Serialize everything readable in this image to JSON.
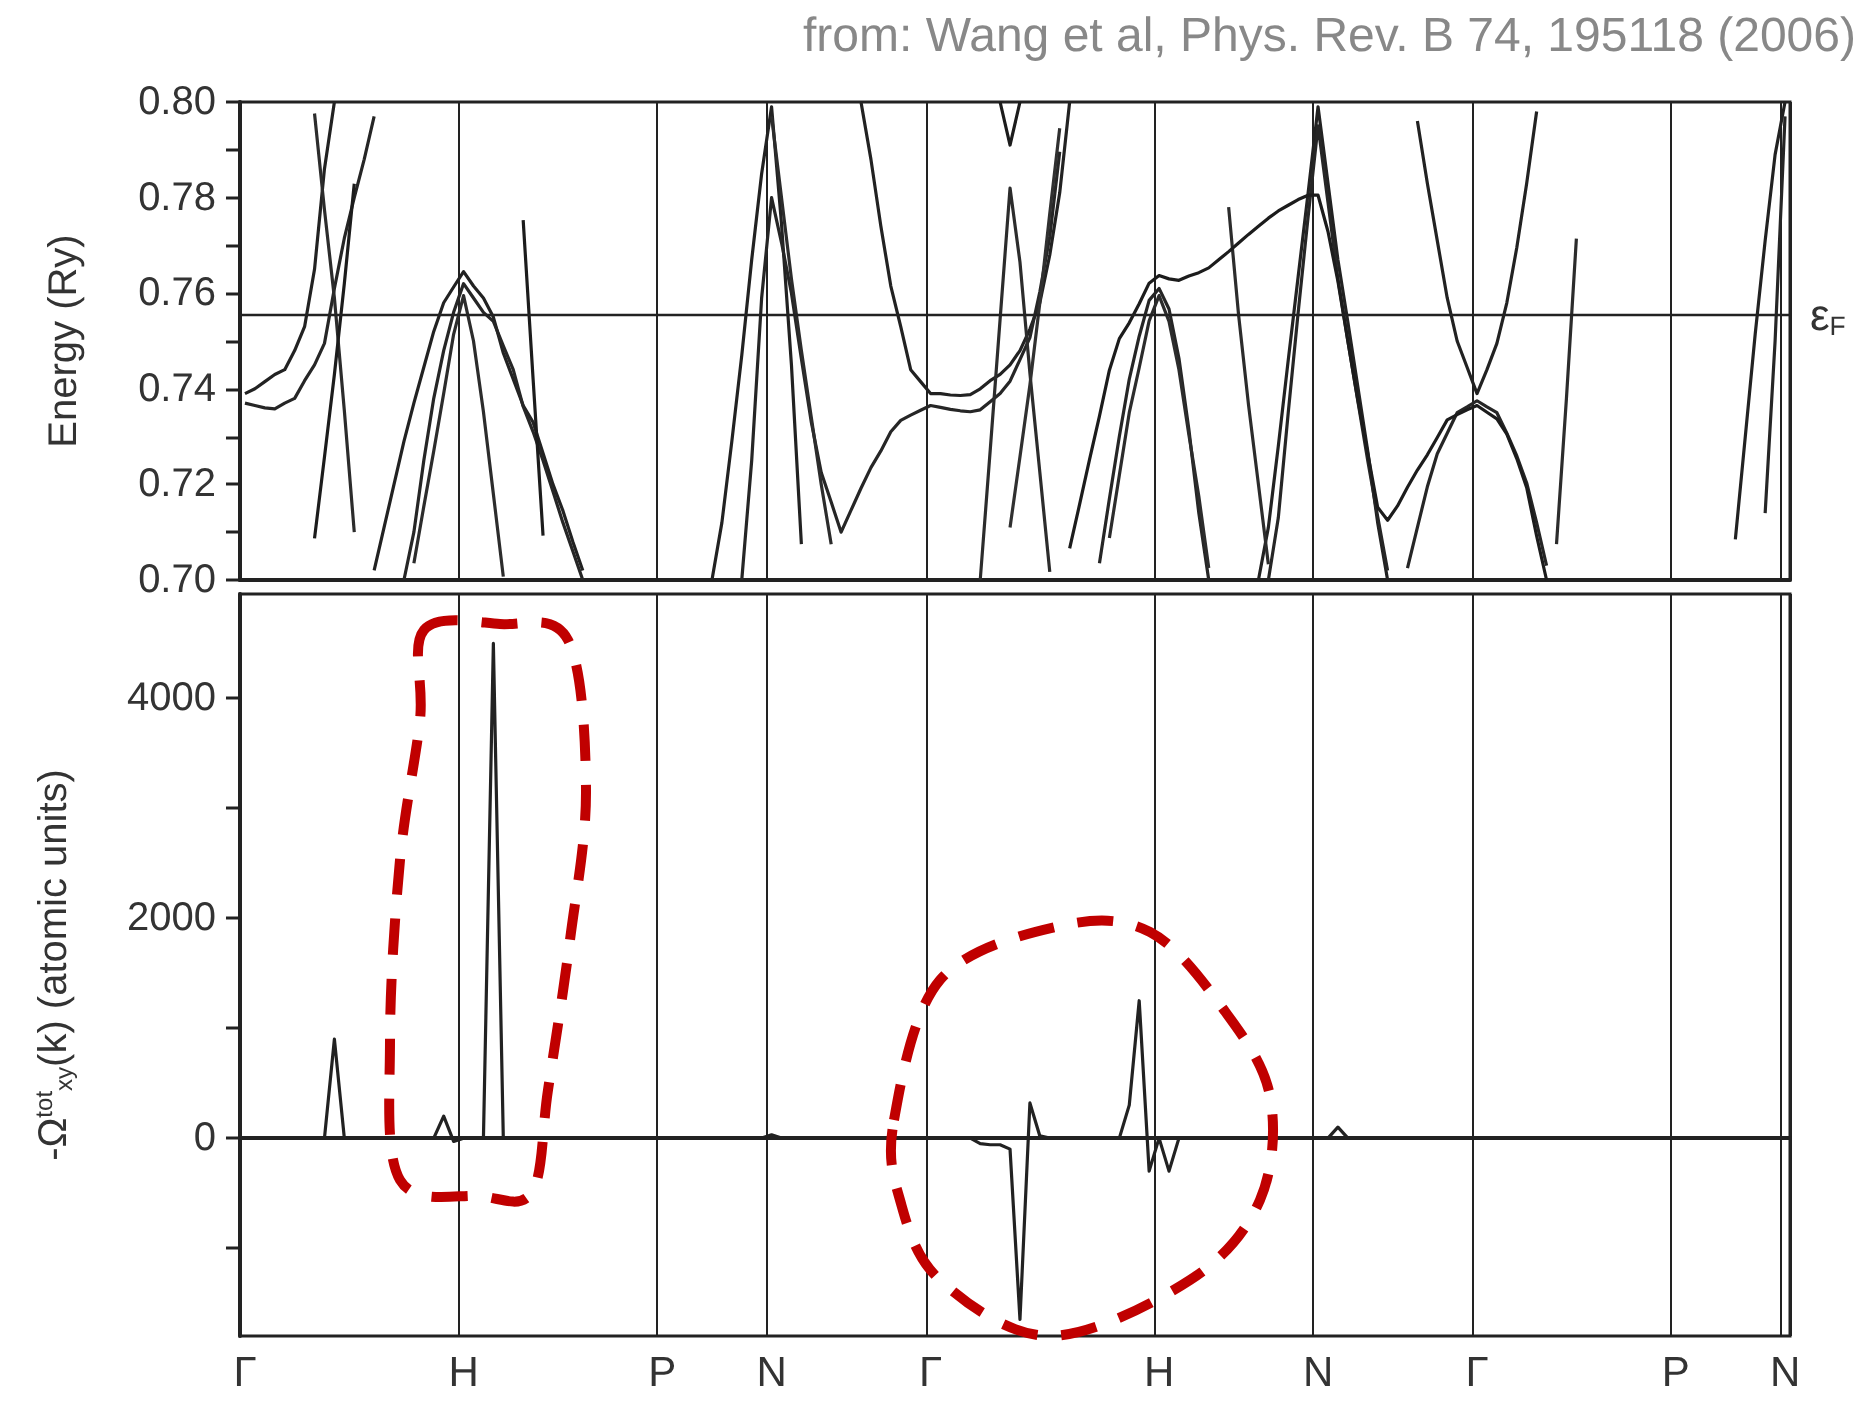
{
  "chart_data": [
    {
      "type": "line",
      "ylabel": "Energy (Ry)",
      "annotations": [
        "from: Wang et al, Phys. Rev. B 74, 195118 (2006)"
      ],
      "categories": [
        null,
        null,
        null,
        null,
        null,
        null,
        null,
        null,
        null,
        null,
        null,
        null,
        null,
        null,
        null,
        null,
        null,
        null,
        null,
        null,
        null,
        null,
        null,
        null,
        null,
        null,
        null,
        null,
        null,
        null,
        null,
        null,
        null,
        null,
        null,
        null,
        null,
        null,
        null,
        null,
        null,
        null,
        null,
        null,
        null,
        null,
        null,
        null,
        null,
        null,
        null,
        null,
        null,
        null,
        null,
        null,
        null,
        null,
        null,
        null,
        null,
        null,
        null,
        null,
        null,
        null,
        null,
        null,
        null,
        null,
        null,
        null,
        null,
        null,
        null,
        null,
        null,
        null,
        null,
        null,
        null,
        null,
        null,
        null,
        null,
        null,
        null,
        null,
        null,
        null,
        null,
        null,
        null,
        null,
        null,
        null,
        null,
        null,
        null,
        null,
        null,
        null,
        null,
        null,
        null,
        null,
        null,
        null,
        null,
        null,
        null,
        null,
        null,
        null,
        null,
        null,
        null,
        null,
        null,
        null,
        null,
        null,
        null,
        null,
        null,
        null,
        null,
        null,
        null,
        null,
        null,
        null,
        null,
        null,
        null,
        null,
        null,
        null,
        null,
        null,
        null,
        null,
        null,
        null,
        null,
        null,
        null,
        null,
        null,
        null,
        null,
        null,
        null,
        null,
        null,
        null
      ],
      "ylim": [
        0.7,
        0.8
      ],
      "yticks": [
        {
          "value": 0.7,
          "label": "0.70"
        },
        {
          "value": 0.71,
          "label": null
        },
        {
          "value": 0.72,
          "label": "0.72"
        },
        {
          "value": 0.73,
          "label": null
        },
        {
          "value": 0.74,
          "label": "0.74"
        },
        {
          "value": 0.75,
          "label": null
        },
        {
          "value": 0.76,
          "label": "0.76"
        },
        {
          "value": 0.77,
          "label": null
        },
        {
          "value": 0.78,
          "label": "0.78"
        },
        {
          "value": 0.79,
          "label": null
        },
        {
          "value": 0.8,
          "label": "0.80"
        }
      ],
      "grid": "x",
      "tick_labels": "y",
      "ref_lines": [
        {
          "axis": "y",
          "value": 0.7555,
          "label": "ε$_{F}$",
          "color": "#222222"
        }
      ],
      "series": [
        {
          "color": "#222222",
          "values": [
            0.739,
            0.74,
            0.7415,
            0.743,
            0.744,
            0.748,
            0.753,
            0.765,
            0.786,
            0.8,
            null,
            null,
            null,
            0.702,
            0.711,
            0.72,
            0.729,
            0.737,
            0.7445,
            0.752,
            0.758,
            0.7613,
            0.7645,
            0.7615,
            0.759,
            0.755,
            0.7475,
            0.742,
            0.7365,
            0.733,
            0.7265,
            0.72,
            0.7145,
            0.708,
            0.702,
            null,
            null,
            null,
            null,
            null,
            null,
            null,
            null,
            null,
            null,
            null,
            null,
            0.7,
            0.712,
            0.729,
            0.747,
            0.767,
            0.785,
            0.799,
            0.7745,
            0.745,
            0.7075,
            null,
            null,
            null,
            null,
            null,
            0.8,
            0.788,
            0.774,
            0.7615,
            0.753,
            0.744,
            0.7415,
            0.739,
            0.739,
            0.7387,
            0.7386,
            0.7388,
            0.74,
            0.7417,
            0.743,
            0.745,
            0.748,
            0.7525,
            0.758,
            0.768,
            0.781,
            0.8,
            null,
            null,
            null,
            null,
            null,
            null,
            null,
            null,
            null,
            null,
            null,
            null,
            null,
            null,
            null,
            null,
            null,
            null,
            0.7,
            0.711,
            0.728,
            0.746,
            0.7635,
            0.781,
            0.799,
            0.783,
            0.767,
            0.754,
            0.7405,
            0.727,
            0.712,
            0.7,
            null,
            null,
            0.796,
            0.783,
            0.771,
            0.759,
            0.75,
            0.7445,
            0.739,
            0.744,
            0.7495,
            0.758,
            0.7695,
            0.783,
            0.798,
            null,
            null,
            null,
            null,
            null,
            null,
            null,
            null,
            null,
            null,
            null,
            null,
            null,
            null,
            null,
            null,
            null,
            null,
            null,
            0.7085,
            0.73,
            0.7515,
            0.771,
            0.789,
            0.8
          ]
        },
        {
          "color": "#262626",
          "values": [
            0.737,
            0.7365,
            0.736,
            0.7358,
            0.737,
            0.738,
            0.7417,
            0.745,
            0.7495,
            0.761,
            0.7715,
            0.78,
            0.788,
            0.797,
            null,
            null,
            0.7,
            0.71,
            0.725,
            0.738,
            0.748,
            0.756,
            0.762,
            0.759,
            0.756,
            0.7541,
            0.749,
            0.744,
            0.7363,
            0.731,
            0.725,
            0.7185,
            0.712,
            0.706,
            0.7,
            null,
            null,
            null,
            null,
            null,
            null,
            null,
            null,
            null,
            null,
            null,
            null,
            null,
            null,
            null,
            0.7,
            0.725,
            0.759,
            0.78,
            0.7706,
            0.76,
            0.7463,
            0.733,
            0.7225,
            0.7163,
            0.71,
            0.7146,
            0.7192,
            0.7235,
            0.727,
            0.731,
            0.7334,
            0.7345,
            0.7355,
            0.7365,
            0.7361,
            0.7357,
            0.7354,
            0.7352,
            0.7356,
            0.7373,
            0.739,
            0.7416,
            0.7461,
            0.7507,
            0.7603,
            0.7718,
            0.7896,
            null,
            null,
            null,
            0.7035,
            0.717,
            0.73,
            0.742,
            0.751,
            0.7585,
            0.761,
            0.7567,
            0.7464,
            0.7315,
            0.714,
            0.7,
            null,
            null,
            null,
            null,
            null,
            0.7,
            0.713,
            0.735,
            0.756,
            0.776,
            0.795,
            0.779,
            0.763,
            0.75,
            0.7375,
            0.725,
            0.7133,
            0.702,
            null,
            0.7025,
            0.711,
            0.7195,
            0.7264,
            0.7307,
            0.735,
            0.7362,
            0.7375,
            0.7362,
            0.735,
            0.7307,
            0.726,
            0.7203,
            0.712,
            0.703,
            null,
            null,
            null,
            null,
            null,
            null,
            null,
            null,
            null,
            null,
            null,
            null,
            null,
            null,
            null,
            null,
            null,
            null,
            null,
            null,
            null,
            0.714,
            0.75,
            0.797
          ]
        },
        {
          "color": "#2c2c2c",
          "values": [
            null,
            null,
            null,
            null,
            null,
            null,
            null,
            0.7976,
            0.7775,
            0.759,
            0.7355,
            0.71,
            null,
            null,
            null,
            null,
            null,
            0.7035,
            0.7154,
            0.727,
            0.739,
            0.7514,
            0.7595,
            0.75,
            0.7352,
            0.718,
            0.7007,
            null,
            null,
            null,
            null,
            null,
            null,
            null,
            null,
            null,
            null,
            null,
            null,
            null,
            null,
            null,
            null,
            null,
            null,
            null,
            null,
            null,
            null,
            null,
            null,
            null,
            null,
            0.797,
            0.78,
            0.763,
            0.748,
            0.734,
            0.72,
            0.7075,
            null,
            null,
            null,
            null,
            null,
            null,
            null,
            null,
            null,
            null,
            null,
            null,
            null,
            null,
            0.7,
            0.727,
            0.7545,
            0.782,
            0.7665,
            0.7433,
            0.7225,
            0.7017,
            null,
            null,
            null,
            null,
            null,
            0.7088,
            0.7219,
            0.735,
            0.7444,
            0.7542,
            0.7595,
            0.7541,
            0.744,
            0.7304,
            0.7175,
            0.7025,
            null,
            0.778,
            0.7555,
            0.7367,
            0.72,
            0.7033,
            null,
            null,
            null,
            null,
            null,
            null,
            null,
            null,
            null,
            null,
            null,
            null,
            null,
            null,
            null,
            null,
            null,
            null,
            null,
            null,
            null,
            null,
            null,
            null,
            null,
            null,
            null,
            null,
            0.7075,
            0.738,
            0.7714,
            null,
            null,
            null,
            null,
            null,
            null,
            null,
            null,
            null,
            null,
            null,
            null,
            null,
            null,
            null,
            null,
            null,
            null,
            null,
            null,
            null
          ]
        },
        {
          "color": "#1c1c1c",
          "values": [
            null,
            null,
            null,
            null,
            null,
            null,
            null,
            0.7087,
            0.7257,
            0.743,
            0.762,
            0.7829,
            null,
            null,
            null,
            null,
            null,
            null,
            null,
            null,
            null,
            null,
            null,
            null,
            null,
            null,
            null,
            null,
            0.7753,
            0.742,
            0.7093,
            null,
            null,
            null,
            null,
            null,
            null,
            null,
            null,
            null,
            null,
            null,
            null,
            null,
            null,
            null,
            null,
            null,
            null,
            null,
            null,
            null,
            null,
            null,
            null,
            null,
            null,
            null,
            null,
            null,
            null,
            null,
            null,
            null,
            null,
            null,
            null,
            null,
            null,
            null,
            null,
            null,
            null,
            null,
            null,
            null,
            0.8,
            0.791,
            0.8,
            null,
            null,
            null,
            null,
            0.7066,
            0.7158,
            0.7252,
            0.7343,
            0.7439,
            0.7505,
            0.7538,
            0.7578,
            0.7621,
            0.7637,
            0.763,
            0.7627,
            0.7636,
            0.7643,
            0.7653,
            0.767,
            0.7687,
            0.7705,
            0.7723,
            0.774,
            0.7757,
            0.7772,
            0.7784,
            0.7796,
            0.7805,
            0.7805,
            0.7729,
            0.7625,
            0.75,
            0.7377,
            0.7265,
            0.7152,
            0.7125,
            0.7155,
            0.7194,
            0.723,
            0.7262,
            0.7298,
            0.7335,
            0.7346,
            0.7356,
            0.7365,
            0.7351,
            0.7337,
            0.7305,
            0.7254,
            0.7193,
            0.7092,
            0.7,
            null,
            null,
            null,
            null,
            null,
            null,
            null,
            null,
            null,
            null,
            null,
            null,
            null,
            null,
            null,
            null,
            null,
            null,
            null,
            null,
            null,
            null,
            null,
            null
          ]
        },
        {
          "color": "#303030",
          "values": [
            null,
            null,
            null,
            null,
            null,
            null,
            null,
            null,
            null,
            null,
            null,
            null,
            null,
            null,
            null,
            null,
            null,
            null,
            null,
            null,
            null,
            null,
            null,
            null,
            null,
            null,
            null,
            null,
            null,
            null,
            null,
            null,
            null,
            null,
            null,
            null,
            null,
            null,
            null,
            null,
            null,
            null,
            null,
            null,
            null,
            null,
            null,
            null,
            null,
            null,
            null,
            null,
            null,
            null,
            null,
            null,
            null,
            null,
            null,
            null,
            null,
            null,
            null,
            null,
            null,
            null,
            null,
            null,
            null,
            null,
            null,
            null,
            null,
            null,
            null,
            null,
            null,
            0.711,
            0.7258,
            0.7408,
            0.758,
            0.7767,
            0.7945,
            null,
            null,
            null,
            null,
            null,
            null,
            null,
            null,
            null,
            null,
            null,
            null,
            null,
            null,
            null,
            null,
            null,
            null,
            null,
            null,
            null,
            null,
            null,
            null,
            null,
            null,
            null,
            null,
            null,
            null,
            null,
            null,
            null,
            null,
            null,
            null,
            null,
            null,
            null,
            null,
            null,
            null,
            null,
            null,
            null,
            null,
            null,
            null,
            null,
            null,
            null,
            null,
            null,
            null,
            null,
            null,
            null,
            null,
            null,
            null,
            null,
            null,
            null,
            null,
            null,
            null,
            null,
            null,
            null,
            null,
            null,
            null,
            null
          ]
        }
      ]
    },
    {
      "type": "line",
      "ylabel": "-Ω$^{tot}$$_{xy}$(k) (atomic units)",
      "categories": [
        "Γ",
        null,
        null,
        null,
        null,
        null,
        null,
        null,
        null,
        null,
        null,
        null,
        null,
        null,
        null,
        null,
        null,
        null,
        null,
        null,
        null,
        null,
        "H",
        null,
        null,
        null,
        null,
        null,
        null,
        null,
        null,
        null,
        null,
        null,
        null,
        null,
        null,
        null,
        null,
        null,
        null,
        null,
        "P",
        null,
        null,
        null,
        null,
        null,
        null,
        null,
        null,
        null,
        null,
        "N",
        null,
        null,
        null,
        null,
        null,
        null,
        null,
        null,
        null,
        null,
        null,
        null,
        null,
        null,
        null,
        "Γ",
        null,
        null,
        null,
        null,
        null,
        null,
        null,
        null,
        null,
        null,
        null,
        null,
        null,
        null,
        null,
        null,
        null,
        null,
        null,
        null,
        null,
        null,
        "H",
        null,
        null,
        null,
        null,
        null,
        null,
        null,
        null,
        null,
        null,
        null,
        null,
        null,
        null,
        null,
        "N",
        null,
        null,
        null,
        null,
        null,
        null,
        null,
        null,
        null,
        null,
        null,
        null,
        null,
        null,
        null,
        "Γ",
        null,
        null,
        null,
        null,
        null,
        null,
        null,
        null,
        null,
        null,
        null,
        null,
        null,
        null,
        null,
        null,
        null,
        null,
        null,
        "P",
        null,
        null,
        null,
        null,
        null,
        null,
        null,
        null,
        null,
        null,
        "N"
      ],
      "ylim": [
        -1800,
        4950
      ],
      "yticks": [
        {
          "value": -1000,
          "label": null
        },
        0,
        {
          "value": 1000,
          "label": null
        },
        2000,
        {
          "value": 3000,
          "label": null
        },
        4000
      ],
      "grid": "x",
      "series": [
        {
          "color": "#222222",
          "values": [
            0,
            0,
            0,
            0,
            0,
            0,
            0,
            0,
            0,
            900,
            0,
            0,
            0,
            0,
            0,
            0,
            0,
            0,
            0,
            0,
            200,
            -30,
            0,
            0,
            0,
            4500,
            0,
            0,
            0,
            0,
            0,
            0,
            0,
            0,
            0,
            0,
            0,
            0,
            0,
            0,
            0,
            0,
            0,
            0,
            0,
            0,
            0,
            0,
            0,
            0,
            0,
            0,
            0,
            30,
            0,
            0,
            0,
            0,
            0,
            0,
            0,
            0,
            0,
            0,
            0,
            0,
            0,
            0,
            0,
            0,
            0,
            0,
            0,
            0,
            -50,
            -60,
            -60,
            -100,
            -1650,
            320,
            20,
            0,
            0,
            0,
            0,
            0,
            0,
            0,
            0,
            300,
            1250,
            -300,
            0,
            -300,
            0,
            0,
            0,
            0,
            0,
            0,
            0,
            0,
            0,
            0,
            0,
            0,
            0,
            0,
            0,
            0,
            100,
            0,
            0,
            0,
            0,
            0,
            0,
            0,
            0,
            0,
            0,
            0,
            0,
            0,
            0,
            0,
            0,
            0,
            0,
            0,
            0,
            0,
            0,
            0,
            0,
            0,
            0,
            0,
            0,
            0,
            0,
            0,
            0,
            0,
            0,
            0,
            0,
            0,
            0,
            0,
            0,
            0,
            0,
            0,
            0,
            0
          ]
        }
      ]
    }
  ]
}
